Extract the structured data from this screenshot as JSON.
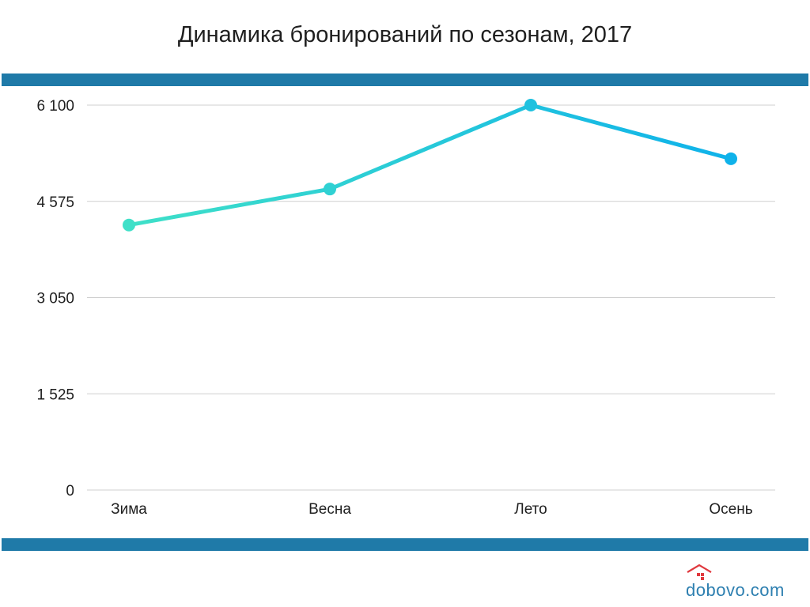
{
  "header": {
    "title": "Динамика бронирований по сезонам, 2017"
  },
  "colors": {
    "band": "#1f7aa8",
    "grid": "#cfcfcf",
    "line_start": "#3fe0c8",
    "line_end": "#0fb2ea",
    "brand_blue": "#2d7fb0",
    "brand_red": "#e0393e"
  },
  "chart_data": {
    "type": "line",
    "title": "Динамика бронирований по сезонам, 2017",
    "xlabel": "",
    "ylabel": "",
    "categories": [
      "Зима",
      "Весна",
      "Лето",
      "Осень"
    ],
    "series": [
      {
        "values": [
          4200,
          4770,
          6100,
          5250
        ]
      }
    ],
    "ylim": [
      0,
      6100
    ],
    "y_ticks": [
      0,
      1525,
      3050,
      4575,
      6100
    ],
    "y_tick_labels": [
      "0",
      "1 525",
      "3 050",
      "4 575",
      "6 100"
    ],
    "grid": true,
    "legend": "none"
  },
  "brand": {
    "logo_text": "dobovo.com",
    "icon": "house-icon"
  }
}
